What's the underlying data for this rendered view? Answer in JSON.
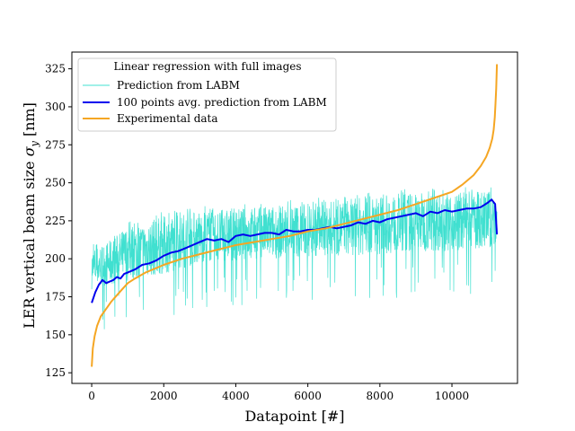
{
  "chart_data": {
    "type": "line",
    "title": "",
    "xlabel": "Datapoint [#]",
    "ylabel_prefix": "LER vertical beam size ",
    "ylabel_symbol": "σ",
    "ylabel_subscript": "y",
    "ylabel_suffix": " [nm]",
    "xlim": [
      -550,
      11820
    ],
    "ylim": [
      118,
      336
    ],
    "xticks": [
      0,
      2000,
      4000,
      6000,
      8000,
      10000
    ],
    "yticks": [
      125,
      150,
      175,
      200,
      225,
      250,
      275,
      300,
      325
    ],
    "legend": {
      "title": "Linear regression with full images",
      "placement": "top-left",
      "entries": [
        "Prediction from LABM",
        "100 points avg. prediction from LABM",
        "Experimental data"
      ]
    },
    "series": [
      {
        "name": "Prediction from LABM",
        "color": "#40e0d0",
        "style": "noisy",
        "x_range": [
          0,
          11250
        ],
        "band_low": [
          [
            0,
            180
          ],
          [
            1000,
            185
          ],
          [
            2000,
            190
          ],
          [
            3000,
            197
          ],
          [
            4000,
            199
          ],
          [
            5000,
            200
          ],
          [
            6000,
            201
          ],
          [
            7000,
            202
          ],
          [
            8000,
            203
          ],
          [
            9000,
            205
          ],
          [
            10000,
            205
          ],
          [
            11250,
            207
          ]
        ],
        "band_high": [
          [
            0,
            207
          ],
          [
            500,
            212
          ],
          [
            1000,
            222
          ],
          [
            2000,
            228
          ],
          [
            3000,
            232
          ],
          [
            4000,
            233
          ],
          [
            5000,
            235
          ],
          [
            6000,
            237
          ],
          [
            7000,
            239
          ],
          [
            8000,
            242
          ],
          [
            9000,
            244
          ],
          [
            10000,
            244
          ],
          [
            11250,
            245
          ]
        ]
      },
      {
        "name": "100 points avg. prediction from LABM",
        "color": "#0000ee",
        "x": [
          0,
          100,
          200,
          300,
          400,
          500,
          600,
          700,
          800,
          900,
          1000,
          1200,
          1400,
          1600,
          1800,
          2000,
          2200,
          2400,
          2600,
          2800,
          3000,
          3200,
          3400,
          3600,
          3800,
          4000,
          4200,
          4400,
          4600,
          4800,
          5000,
          5200,
          5400,
          5600,
          5800,
          6000,
          6200,
          6400,
          6600,
          6800,
          7000,
          7200,
          7400,
          7600,
          7800,
          8000,
          8200,
          8400,
          8600,
          8800,
          9000,
          9200,
          9400,
          9600,
          9800,
          10000,
          10200,
          10400,
          10600,
          10800,
          11000,
          11100,
          11200,
          11250
        ],
        "values": [
          171,
          178,
          183,
          186,
          184,
          185,
          186,
          188,
          187,
          190,
          191,
          193,
          196,
          197,
          199,
          202,
          204,
          205,
          207,
          209,
          211,
          213,
          212,
          213,
          211,
          215,
          216,
          215,
          216,
          217,
          217,
          216,
          219,
          218,
          218,
          219,
          219,
          220,
          221,
          220,
          221,
          222,
          224,
          223,
          225,
          224,
          226,
          227,
          228,
          229,
          230,
          228,
          231,
          230,
          232,
          231,
          232,
          233,
          233,
          234,
          237,
          239,
          236,
          216
        ]
      },
      {
        "name": "Experimental data",
        "color": "#f5a623",
        "x": [
          0,
          30,
          80,
          150,
          250,
          400,
          550,
          700,
          850,
          1000,
          1200,
          1500,
          2000,
          2500,
          3000,
          3500,
          4000,
          4500,
          5000,
          5500,
          6000,
          6500,
          7000,
          7500,
          8000,
          8500,
          9000,
          9500,
          10000,
          10300,
          10600,
          10800,
          10950,
          11050,
          11120,
          11160,
          11190,
          11210,
          11230,
          11240,
          11250
        ],
        "values": [
          129,
          141,
          149,
          156,
          162,
          167,
          172,
          176,
          180,
          184,
          187,
          191,
          196,
          200,
          203,
          206,
          209,
          211,
          213,
          215,
          218,
          220,
          223,
          226,
          229,
          232,
          236,
          240,
          244,
          249,
          255,
          261,
          267,
          273,
          279,
          285,
          293,
          302,
          312,
          320,
          328
        ]
      }
    ]
  }
}
